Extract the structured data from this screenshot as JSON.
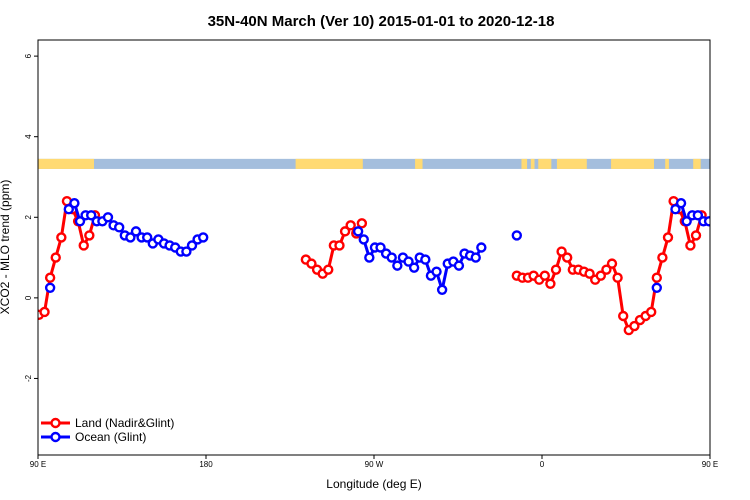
{
  "chart_data": {
    "type": "line",
    "title": "35N-40N March (Ver 10)   2015-01-01 to 2020-12-18",
    "xlabel": "Longitude (deg E)",
    "ylabel": "XCO2 - MLO trend (ppm)",
    "xlim": [
      90,
      450
    ],
    "ylim": [
      -3.9,
      6.4
    ],
    "x_ticks": [
      {
        "value": 90,
        "label": "90 E"
      },
      {
        "value": 180,
        "label": "180"
      },
      {
        "value": 270,
        "label": "90 W"
      },
      {
        "value": 360,
        "label": "0"
      },
      {
        "value": 450,
        "label": "90 E"
      },
      {
        "value": 540,
        "label": "180"
      }
    ],
    "y_ticks": [
      {
        "value": -2,
        "label": "-2"
      },
      {
        "value": 0,
        "label": "0"
      },
      {
        "value": 2,
        "label": "2"
      },
      {
        "value": 4,
        "label": "4"
      },
      {
        "value": 6,
        "label": "6"
      }
    ],
    "grid": false,
    "legend": {
      "position": "bottom-left"
    },
    "land_ocean_strip": {
      "y_range": [
        3.2,
        3.45
      ],
      "land_color": "#FFDA73",
      "ocean_color": "#A4BEDD",
      "land_segments": [
        [
          90,
          120
        ],
        [
          228,
          264
        ],
        [
          292,
          296
        ],
        [
          349,
          352
        ],
        [
          354,
          356
        ],
        [
          358,
          365
        ],
        [
          368,
          384
        ],
        [
          397,
          420
        ],
        [
          426,
          428
        ],
        [
          441,
          445
        ],
        [
          450,
          480
        ]
      ]
    },
    "series": [
      {
        "name": "Land (Nadir&Glint)",
        "color": "#FF0000",
        "points": [
          [
            90.5,
            -0.42
          ],
          [
            93.5,
            -0.35
          ],
          [
            96.5,
            0.5
          ],
          [
            99.5,
            1.0
          ],
          [
            102.5,
            1.5
          ],
          [
            105.5,
            2.4
          ],
          [
            108.5,
            2.2
          ],
          [
            111.5,
            1.9
          ],
          [
            114.5,
            1.3
          ],
          [
            117.5,
            1.55
          ],
          [
            120.5,
            2.05
          ],
          [
            233.5,
            0.95
          ],
          [
            236.5,
            0.85
          ],
          [
            239.5,
            0.7
          ],
          [
            242.5,
            0.6
          ],
          [
            245.5,
            0.7
          ],
          [
            248.5,
            1.3
          ],
          [
            251.5,
            1.3
          ],
          [
            254.5,
            1.65
          ],
          [
            257.5,
            1.8
          ],
          [
            260.5,
            1.6
          ],
          [
            263.5,
            1.85
          ],
          [
            346.5,
            0.55
          ],
          [
            349.5,
            0.5
          ],
          [
            352.5,
            0.5
          ],
          [
            355.5,
            0.55
          ],
          [
            358.5,
            0.45
          ],
          [
            361.5,
            0.55
          ],
          [
            364.5,
            0.35
          ],
          [
            367.5,
            0.7
          ],
          [
            370.5,
            1.15
          ],
          [
            373.5,
            1.0
          ],
          [
            376.5,
            0.7
          ],
          [
            379.5,
            0.7
          ],
          [
            382.5,
            0.65
          ],
          [
            385.5,
            0.6
          ],
          [
            388.5,
            0.45
          ],
          [
            391.5,
            0.55
          ],
          [
            394.5,
            0.7
          ],
          [
            397.5,
            0.85
          ],
          [
            400.5,
            0.5
          ],
          [
            403.5,
            -0.45
          ],
          [
            406.5,
            -0.8
          ],
          [
            409.5,
            -0.7
          ],
          [
            412.5,
            -0.55
          ],
          [
            415.5,
            -0.45
          ],
          [
            418.5,
            -0.35
          ],
          [
            421.5,
            0.5
          ],
          [
            424.5,
            1.0
          ],
          [
            427.5,
            1.5
          ],
          [
            430.5,
            2.4
          ],
          [
            433.5,
            2.2
          ],
          [
            436.5,
            1.9
          ],
          [
            439.5,
            1.3
          ],
          [
            442.5,
            1.55
          ],
          [
            445.5,
            2.05
          ]
        ]
      },
      {
        "name": "Ocean (Glint)",
        "color": "#0000FF",
        "points": [
          [
            96.5,
            0.25
          ],
          [
            106.5,
            2.2
          ],
          [
            109.5,
            2.35
          ],
          [
            112.5,
            1.9
          ],
          [
            115.5,
            2.05
          ],
          [
            118.5,
            2.05
          ],
          [
            121.5,
            1.9
          ],
          [
            124.5,
            1.9
          ],
          [
            127.5,
            2.0
          ],
          [
            130.5,
            1.8
          ],
          [
            133.5,
            1.75
          ],
          [
            136.5,
            1.55
          ],
          [
            139.5,
            1.5
          ],
          [
            142.5,
            1.65
          ],
          [
            145.5,
            1.5
          ],
          [
            148.5,
            1.5
          ],
          [
            151.5,
            1.35
          ],
          [
            154.5,
            1.45
          ],
          [
            157.5,
            1.35
          ],
          [
            160.5,
            1.3
          ],
          [
            163.5,
            1.25
          ],
          [
            166.5,
            1.15
          ],
          [
            169.5,
            1.15
          ],
          [
            172.5,
            1.3
          ],
          [
            175.5,
            1.45
          ],
          [
            178.5,
            1.5
          ],
          [
            261.5,
            1.65
          ],
          [
            264.5,
            1.45
          ],
          [
            267.5,
            1.0
          ],
          [
            270.5,
            1.25
          ],
          [
            273.5,
            1.25
          ],
          [
            276.5,
            1.1
          ],
          [
            279.5,
            1.0
          ],
          [
            282.5,
            0.8
          ],
          [
            285.5,
            1.0
          ],
          [
            288.5,
            0.9
          ],
          [
            291.5,
            0.75
          ],
          [
            294.5,
            1.0
          ],
          [
            297.5,
            0.95
          ],
          [
            300.5,
            0.55
          ],
          [
            303.5,
            0.65
          ],
          [
            306.5,
            0.2
          ],
          [
            309.5,
            0.85
          ],
          [
            312.5,
            0.9
          ],
          [
            315.5,
            0.8
          ],
          [
            318.5,
            1.1
          ],
          [
            321.5,
            1.05
          ],
          [
            324.5,
            1.0
          ],
          [
            327.5,
            1.25
          ],
          [
            346.5,
            1.55
          ],
          [
            421.5,
            0.25
          ],
          [
            431.5,
            2.2
          ],
          [
            434.5,
            2.35
          ],
          [
            437.5,
            1.9
          ],
          [
            440.5,
            2.05
          ],
          [
            443.5,
            2.05
          ],
          [
            446.5,
            1.9
          ],
          [
            449.5,
            1.9
          ]
        ]
      }
    ]
  }
}
